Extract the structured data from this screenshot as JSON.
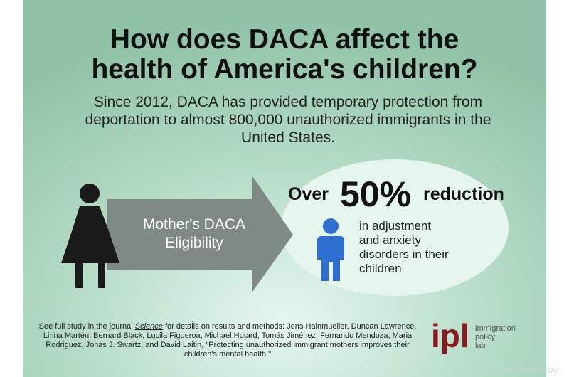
{
  "header": {
    "title": [
      "How does DACA affect the",
      "health of America's children?"
    ],
    "subtitle": [
      "Since 2012, DACA has provided temporary protection from",
      "deportation to almost 800,000 unauthorized immigrants in the",
      "United States."
    ]
  },
  "arrow": {
    "label": [
      "Mother's DACA",
      "Eligibility"
    ]
  },
  "result": {
    "prefix": "Over",
    "figure": "50%",
    "suffix": "reduction",
    "detail": [
      "in adjustment",
      "and anxiety",
      "disorders in their",
      "children"
    ]
  },
  "footer": {
    "first_line": [
      "See full study in the journal ",
      "Science",
      " for details on results and methods: Jens Hainmueller, Duncan Lawrence,"
    ],
    "lines": [
      "Linna Martén, Bernard Black, Lucila Figueroa, Michael Hotard, Tomás Jiménez, Fernando Mendoza, Maria",
      "Rodriguez, Jonas J. Swartz, and David Laitin, \"Protecting unauthorized immigrant mothers improves their",
      "children's mental health.\""
    ]
  },
  "logo": {
    "mark": "ipl",
    "name": [
      "immigration",
      "policy",
      "lab"
    ]
  },
  "watermark": "SCIENCEAQ.COM"
}
